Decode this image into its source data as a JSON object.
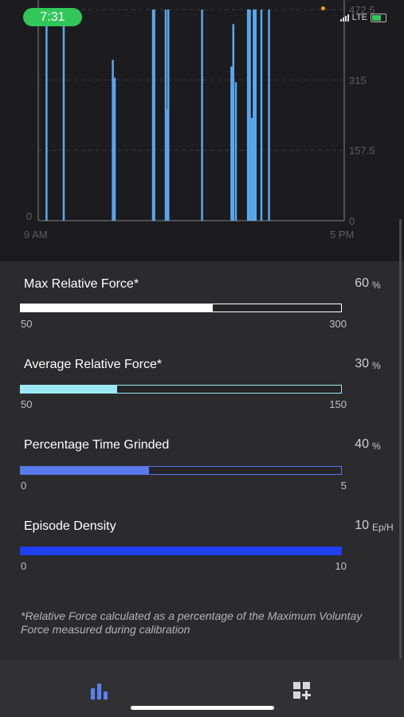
{
  "status_bar": {
    "time": "7:31",
    "network": "LTE",
    "time_color": "#32c759"
  },
  "chart_data": {
    "type": "bar",
    "x_tick_labels": [
      "9 AM",
      "5 PM"
    ],
    "left_y_tick_labels": [
      "0"
    ],
    "right_y_tick_labels": [
      "472.5",
      "315",
      "157.5",
      "0"
    ],
    "ylim": [
      0,
      472.5
    ],
    "grid": "horizontal dashed",
    "series_color": "#5aa8f0",
    "spikes": [
      {
        "t": "9:13",
        "value": 472.5
      },
      {
        "t": "9:40",
        "value": 472.5
      },
      {
        "t": "10:57",
        "value": 360
      },
      {
        "t": "11:00",
        "value": 320
      },
      {
        "t": "12:00",
        "value": 472.5
      },
      {
        "t": "12:02",
        "value": 472.5
      },
      {
        "t": "12:20",
        "value": 472.5
      },
      {
        "t": "12:23",
        "value": 250
      },
      {
        "t": "12:24",
        "value": 472.5
      },
      {
        "t": "13:17",
        "value": 472.5
      },
      {
        "t": "14:03",
        "value": 345
      },
      {
        "t": "14:06",
        "value": 440
      },
      {
        "t": "14:10",
        "value": 310
      },
      {
        "t": "14:29",
        "value": 472.5
      },
      {
        "t": "14:32",
        "value": 472.5
      },
      {
        "t": "14:35",
        "value": 230
      },
      {
        "t": "14:38",
        "value": 472.5
      },
      {
        "t": "14:41",
        "value": 472.5
      },
      {
        "t": "14:50",
        "value": 472.5
      },
      {
        "t": "15:02",
        "value": 472.5
      }
    ]
  },
  "stats": [
    {
      "title": "Max Relative Force*",
      "value": "60",
      "unit": "%",
      "min_label": "50",
      "max_label": "300",
      "fill_fraction": 0.6,
      "fill_color": "#ffffff",
      "border_color": "#ffffff",
      "track_color": "#252527"
    },
    {
      "title": "Average Relative Force*",
      "value": "30",
      "unit": "%",
      "min_label": "50",
      "max_label": "150",
      "fill_fraction": 0.3,
      "fill_color": "#9de8f5",
      "border_color": "#9de8f5",
      "track_color": "#252527"
    },
    {
      "title": "Percentage Time Grinded",
      "value": "40",
      "unit": "%",
      "min_label": "0",
      "max_label": "5",
      "fill_fraction": 0.4,
      "fill_color": "#5779ec",
      "border_color": "#5779ec",
      "track_color": "#252527"
    },
    {
      "title": "Episode Density",
      "value": "10",
      "unit": "Ep/H",
      "min_label": "0",
      "max_label": "10",
      "fill_fraction": 1.0,
      "fill_color": "#1f3ff0",
      "border_color": "#1f3ff0",
      "track_color": "#252527"
    }
  ],
  "footnote": "*Relative Force calculated as a percentage of the Maximum Voluntay Force measured during calibration",
  "tabs": [
    {
      "icon": "bar-chart-icon",
      "active": true,
      "color": "#5a7ff0"
    },
    {
      "icon": "add-widget-icon",
      "active": false,
      "color": "#d8d8dc"
    }
  ]
}
